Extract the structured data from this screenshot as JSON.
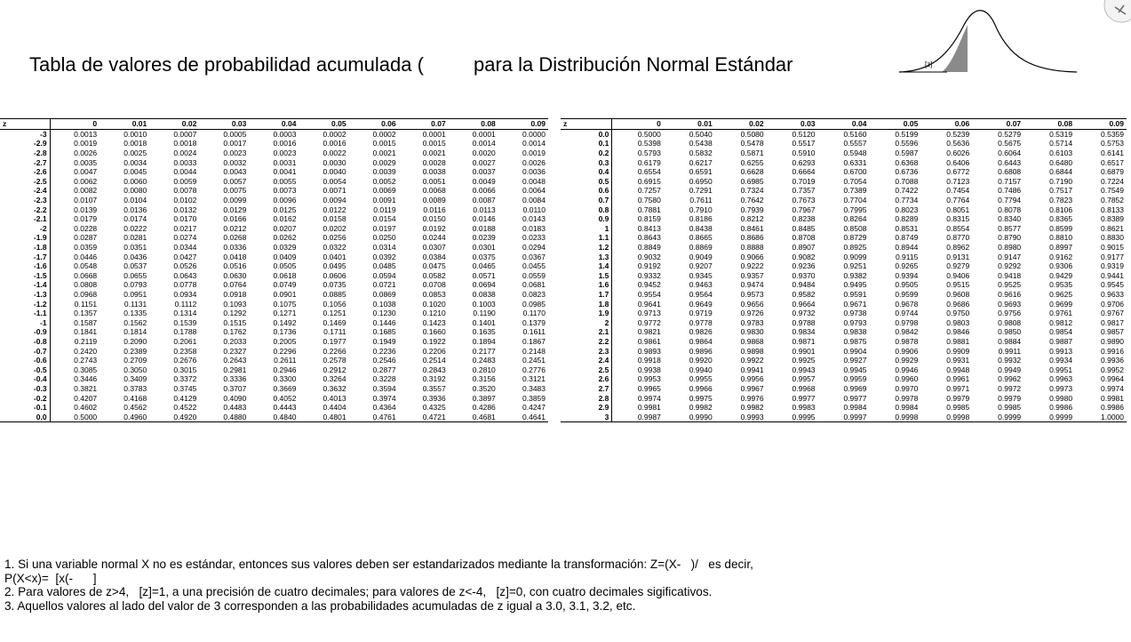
{
  "title": {
    "part1": "Tabla de valores de probabilidad acumulada (",
    "part2": "para la Distribución Normal Estándar"
  },
  "figure": {
    "shade_label": "[z]"
  },
  "table_left": {
    "headers": [
      "z",
      "0",
      "0.01",
      "0.02",
      "0.03",
      "0.04",
      "0.05",
      "0.06",
      "0.07",
      "0.08",
      "0.09"
    ],
    "rows": [
      [
        "-3",
        "0.0013",
        "0.0010",
        "0.0007",
        "0.0005",
        "0.0003",
        "0.0002",
        "0.0002",
        "0.0001",
        "0.0001",
        "0.0000"
      ],
      [
        "-2.9",
        "0.0019",
        "0.0018",
        "0.0018",
        "0.0017",
        "0.0016",
        "0.0016",
        "0.0015",
        "0.0015",
        "0.0014",
        "0.0014"
      ],
      [
        "-2.8",
        "0.0026",
        "0.0025",
        "0.0024",
        "0.0023",
        "0.0023",
        "0.0022",
        "0.0021",
        "0.0021",
        "0.0020",
        "0.0019"
      ],
      [
        "-2.7",
        "0.0035",
        "0.0034",
        "0.0033",
        "0.0032",
        "0.0031",
        "0.0030",
        "0.0029",
        "0.0028",
        "0.0027",
        "0.0026"
      ],
      [
        "-2.6",
        "0.0047",
        "0.0045",
        "0.0044",
        "0.0043",
        "0.0041",
        "0.0040",
        "0.0039",
        "0.0038",
        "0.0037",
        "0.0036"
      ],
      [
        "-2.5",
        "0.0062",
        "0.0060",
        "0.0059",
        "0.0057",
        "0.0055",
        "0.0054",
        "0.0052",
        "0.0051",
        "0.0049",
        "0.0048"
      ],
      [
        "-2.4",
        "0.0082",
        "0.0080",
        "0.0078",
        "0.0075",
        "0.0073",
        "0.0071",
        "0.0069",
        "0.0068",
        "0.0066",
        "0.0064"
      ],
      [
        "-2.3",
        "0.0107",
        "0.0104",
        "0.0102",
        "0.0099",
        "0.0096",
        "0.0094",
        "0.0091",
        "0.0089",
        "0.0087",
        "0.0084"
      ],
      [
        "-2.2",
        "0.0139",
        "0.0136",
        "0.0132",
        "0.0129",
        "0.0125",
        "0.0122",
        "0.0119",
        "0.0116",
        "0.0113",
        "0.0110"
      ],
      [
        "-2.1",
        "0.0179",
        "0.0174",
        "0.0170",
        "0.0166",
        "0.0162",
        "0.0158",
        "0.0154",
        "0.0150",
        "0.0146",
        "0.0143"
      ],
      [
        "-2",
        "0.0228",
        "0.0222",
        "0.0217",
        "0.0212",
        "0.0207",
        "0.0202",
        "0.0197",
        "0.0192",
        "0.0188",
        "0.0183"
      ],
      [
        "-1.9",
        "0.0287",
        "0.0281",
        "0.0274",
        "0.0268",
        "0.0262",
        "0.0256",
        "0.0250",
        "0.0244",
        "0.0239",
        "0.0233"
      ],
      [
        "-1.8",
        "0.0359",
        "0.0351",
        "0.0344",
        "0.0336",
        "0.0329",
        "0.0322",
        "0.0314",
        "0.0307",
        "0.0301",
        "0.0294"
      ],
      [
        "-1.7",
        "0.0446",
        "0.0436",
        "0.0427",
        "0.0418",
        "0.0409",
        "0.0401",
        "0.0392",
        "0.0384",
        "0.0375",
        "0.0367"
      ],
      [
        "-1.6",
        "0.0548",
        "0.0537",
        "0.0526",
        "0.0516",
        "0.0505",
        "0.0495",
        "0.0485",
        "0.0475",
        "0.0465",
        "0.0455"
      ],
      [
        "-1.5",
        "0.0668",
        "0.0655",
        "0.0643",
        "0.0630",
        "0.0618",
        "0.0606",
        "0.0594",
        "0.0582",
        "0.0571",
        "0.0559"
      ],
      [
        "-1.4",
        "0.0808",
        "0.0793",
        "0.0778",
        "0.0764",
        "0.0749",
        "0.0735",
        "0.0721",
        "0.0708",
        "0.0694",
        "0.0681"
      ],
      [
        "-1.3",
        "0.0968",
        "0.0951",
        "0.0934",
        "0.0918",
        "0.0901",
        "0.0885",
        "0.0869",
        "0.0853",
        "0.0838",
        "0.0823"
      ],
      [
        "-1.2",
        "0.1151",
        "0.1131",
        "0.1112",
        "0.1093",
        "0.1075",
        "0.1056",
        "0.1038",
        "0.1020",
        "0.1003",
        "0.0985"
      ],
      [
        "-1.1",
        "0.1357",
        "0.1335",
        "0.1314",
        "0.1292",
        "0.1271",
        "0.1251",
        "0.1230",
        "0.1210",
        "0.1190",
        "0.1170"
      ],
      [
        "-1",
        "0.1587",
        "0.1562",
        "0.1539",
        "0.1515",
        "0.1492",
        "0.1469",
        "0.1446",
        "0.1423",
        "0.1401",
        "0.1379"
      ],
      [
        "-0.9",
        "0.1841",
        "0.1814",
        "0.1788",
        "0.1762",
        "0.1736",
        "0.1711",
        "0.1685",
        "0.1660",
        "0.1635",
        "0.1611"
      ],
      [
        "-0.8",
        "0.2119",
        "0.2090",
        "0.2061",
        "0.2033",
        "0.2005",
        "0.1977",
        "0.1949",
        "0.1922",
        "0.1894",
        "0.1867"
      ],
      [
        "-0.7",
        "0.2420",
        "0.2389",
        "0.2358",
        "0.2327",
        "0.2296",
        "0.2266",
        "0.2236",
        "0.2206",
        "0.2177",
        "0.2148"
      ],
      [
        "-0.6",
        "0.2743",
        "0.2709",
        "0.2676",
        "0.2643",
        "0.2611",
        "0.2578",
        "0.2546",
        "0.2514",
        "0.2483",
        "0.2451"
      ],
      [
        "-0.5",
        "0.3085",
        "0.3050",
        "0.3015",
        "0.2981",
        "0.2946",
        "0.2912",
        "0.2877",
        "0.2843",
        "0.2810",
        "0.2776"
      ],
      [
        "-0.4",
        "0.3446",
        "0.3409",
        "0.3372",
        "0.3336",
        "0.3300",
        "0.3264",
        "0.3228",
        "0.3192",
        "0.3156",
        "0.3121"
      ],
      [
        "-0.3",
        "0.3821",
        "0.3783",
        "0.3745",
        "0.3707",
        "0.3669",
        "0.3632",
        "0.3594",
        "0.3557",
        "0.3520",
        "0.3483"
      ],
      [
        "-0.2",
        "0.4207",
        "0.4168",
        "0.4129",
        "0.4090",
        "0.4052",
        "0.4013",
        "0.3974",
        "0.3936",
        "0.3897",
        "0.3859"
      ],
      [
        "-0.1",
        "0.4602",
        "0.4562",
        "0.4522",
        "0.4483",
        "0.4443",
        "0.4404",
        "0.4364",
        "0.4325",
        "0.4286",
        "0.4247"
      ],
      [
        "0.0",
        "0.5000",
        "0.4960",
        "0.4920",
        "0.4880",
        "0.4840",
        "0.4801",
        "0.4761",
        "0.4721",
        "0.4681",
        "0.4641"
      ]
    ]
  },
  "table_right": {
    "headers": [
      "z",
      "0",
      "0.01",
      "0.02",
      "0.03",
      "0.04",
      "0.05",
      "0.06",
      "0.07",
      "0.08",
      "0.09"
    ],
    "rows": [
      [
        "0.0",
        "0.5000",
        "0.5040",
        "0.5080",
        "0.5120",
        "0.5160",
        "0.5199",
        "0.5239",
        "0.5279",
        "0.5319",
        "0.5359"
      ],
      [
        "0.1",
        "0.5398",
        "0.5438",
        "0.5478",
        "0.5517",
        "0.5557",
        "0.5596",
        "0.5636",
        "0.5675",
        "0.5714",
        "0.5753"
      ],
      [
        "0.2",
        "0.5793",
        "0.5832",
        "0.5871",
        "0.5910",
        "0.5948",
        "0.5987",
        "0.6026",
        "0.6064",
        "0.6103",
        "0.6141"
      ],
      [
        "0.3",
        "0.6179",
        "0.6217",
        "0.6255",
        "0.6293",
        "0.6331",
        "0.6368",
        "0.6406",
        "0.6443",
        "0.6480",
        "0.6517"
      ],
      [
        "0.4",
        "0.6554",
        "0.6591",
        "0.6628",
        "0.6664",
        "0.6700",
        "0.6736",
        "0.6772",
        "0.6808",
        "0.6844",
        "0.6879"
      ],
      [
        "0.5",
        "0.6915",
        "0.6950",
        "0.6985",
        "0.7019",
        "0.7054",
        "0.7088",
        "0.7123",
        "0.7157",
        "0.7190",
        "0.7224"
      ],
      [
        "0.6",
        "0.7257",
        "0.7291",
        "0.7324",
        "0.7357",
        "0.7389",
        "0.7422",
        "0.7454",
        "0.7486",
        "0.7517",
        "0.7549"
      ],
      [
        "0.7",
        "0.7580",
        "0.7611",
        "0.7642",
        "0.7673",
        "0.7704",
        "0.7734",
        "0.7764",
        "0.7794",
        "0.7823",
        "0.7852"
      ],
      [
        "0.8",
        "0.7881",
        "0.7910",
        "0.7939",
        "0.7967",
        "0.7995",
        "0.8023",
        "0.8051",
        "0.8078",
        "0.8106",
        "0.8133"
      ],
      [
        "0.9",
        "0.8159",
        "0.8186",
        "0.8212",
        "0.8238",
        "0.8264",
        "0.8289",
        "0.8315",
        "0.8340",
        "0.8365",
        "0.8389"
      ],
      [
        "1",
        "0.8413",
        "0.8438",
        "0.8461",
        "0.8485",
        "0.8508",
        "0.8531",
        "0.8554",
        "0.8577",
        "0.8599",
        "0.8621"
      ],
      [
        "1.1",
        "0.8643",
        "0.8665",
        "0.8686",
        "0.8708",
        "0.8729",
        "0.8749",
        "0.8770",
        "0.8790",
        "0.8810",
        "0.8830"
      ],
      [
        "1.2",
        "0.8849",
        "0.8869",
        "0.8888",
        "0.8907",
        "0.8925",
        "0.8944",
        "0.8962",
        "0.8980",
        "0.8997",
        "0.9015"
      ],
      [
        "1.3",
        "0.9032",
        "0.9049",
        "0.9066",
        "0.9082",
        "0.9099",
        "0.9115",
        "0.9131",
        "0.9147",
        "0.9162",
        "0.9177"
      ],
      [
        "1.4",
        "0.9192",
        "0.9207",
        "0.9222",
        "0.9236",
        "0.9251",
        "0.9265",
        "0.9279",
        "0.9292",
        "0.9306",
        "0.9319"
      ],
      [
        "1.5",
        "0.9332",
        "0.9345",
        "0.9357",
        "0.9370",
        "0.9382",
        "0.9394",
        "0.9406",
        "0.9418",
        "0.9429",
        "0.9441"
      ],
      [
        "1.6",
        "0.9452",
        "0.9463",
        "0.9474",
        "0.9484",
        "0.9495",
        "0.9505",
        "0.9515",
        "0.9525",
        "0.9535",
        "0.9545"
      ],
      [
        "1.7",
        "0.9554",
        "0.9564",
        "0.9573",
        "0.9582",
        "0.9591",
        "0.9599",
        "0.9608",
        "0.9616",
        "0.9625",
        "0.9633"
      ],
      [
        "1.8",
        "0.9641",
        "0.9649",
        "0.9656",
        "0.9664",
        "0.9671",
        "0.9678",
        "0.9686",
        "0.9693",
        "0.9699",
        "0.9706"
      ],
      [
        "1.9",
        "0.9713",
        "0.9719",
        "0.9726",
        "0.9732",
        "0.9738",
        "0.9744",
        "0.9750",
        "0.9756",
        "0.9761",
        "0.9767"
      ],
      [
        "2",
        "0.9772",
        "0.9778",
        "0.9783",
        "0.9788",
        "0.9793",
        "0.9798",
        "0.9803",
        "0.9808",
        "0.9812",
        "0.9817"
      ],
      [
        "2.1",
        "0.9821",
        "0.9826",
        "0.9830",
        "0.9834",
        "0.9838",
        "0.9842",
        "0.9846",
        "0.9850",
        "0.9854",
        "0.9857"
      ],
      [
        "2.2",
        "0.9861",
        "0.9864",
        "0.9868",
        "0.9871",
        "0.9875",
        "0.9878",
        "0.9881",
        "0.9884",
        "0.9887",
        "0.9890"
      ],
      [
        "2.3",
        "0.9893",
        "0.9896",
        "0.9898",
        "0.9901",
        "0.9904",
        "0.9906",
        "0.9909",
        "0.9911",
        "0.9913",
        "0.9916"
      ],
      [
        "2.4",
        "0.9918",
        "0.9920",
        "0.9922",
        "0.9925",
        "0.9927",
        "0.9929",
        "0.9931",
        "0.9932",
        "0.9934",
        "0.9936"
      ],
      [
        "2.5",
        "0.9938",
        "0.9940",
        "0.9941",
        "0.9943",
        "0.9945",
        "0.9946",
        "0.9948",
        "0.9949",
        "0.9951",
        "0.9952"
      ],
      [
        "2.6",
        "0.9953",
        "0.9955",
        "0.9956",
        "0.9957",
        "0.9959",
        "0.9960",
        "0.9961",
        "0.9962",
        "0.9963",
        "0.9964"
      ],
      [
        "2.7",
        "0.9965",
        "0.9966",
        "0.9967",
        "0.9968",
        "0.9969",
        "0.9970",
        "0.9971",
        "0.9972",
        "0.9973",
        "0.9974"
      ],
      [
        "2.8",
        "0.9974",
        "0.9975",
        "0.9976",
        "0.9977",
        "0.9977",
        "0.9978",
        "0.9979",
        "0.9979",
        "0.9980",
        "0.9981"
      ],
      [
        "2.9",
        "0.9981",
        "0.9982",
        "0.9982",
        "0.9983",
        "0.9984",
        "0.9984",
        "0.9985",
        "0.9985",
        "0.9986",
        "0.9986"
      ],
      [
        "3",
        "0.9987",
        "0.9990",
        "0.9993",
        "0.9995",
        "0.9997",
        "0.9998",
        "0.9998",
        "0.9999",
        "0.9999",
        "1.0000"
      ]
    ]
  },
  "notes": [
    "1. Si una variable normal X no es estándar, entonces sus valores deben ser estandarizados mediante la transformación: Z=(X-   )/   es decir,",
    "P(X<x)=  [x(-      ]",
    "2. Para valores de z>4,   [z]=1, a una precisión de cuatro decimales; para valores de z<-4,   [z]=0, con cuatro decimales sigificativos.",
    "3. Aquellos valores al lado del valor de 3 corresponden a las probabilidades acumuladas de z igual a 3.0, 3.1, 3.2, etc."
  ]
}
